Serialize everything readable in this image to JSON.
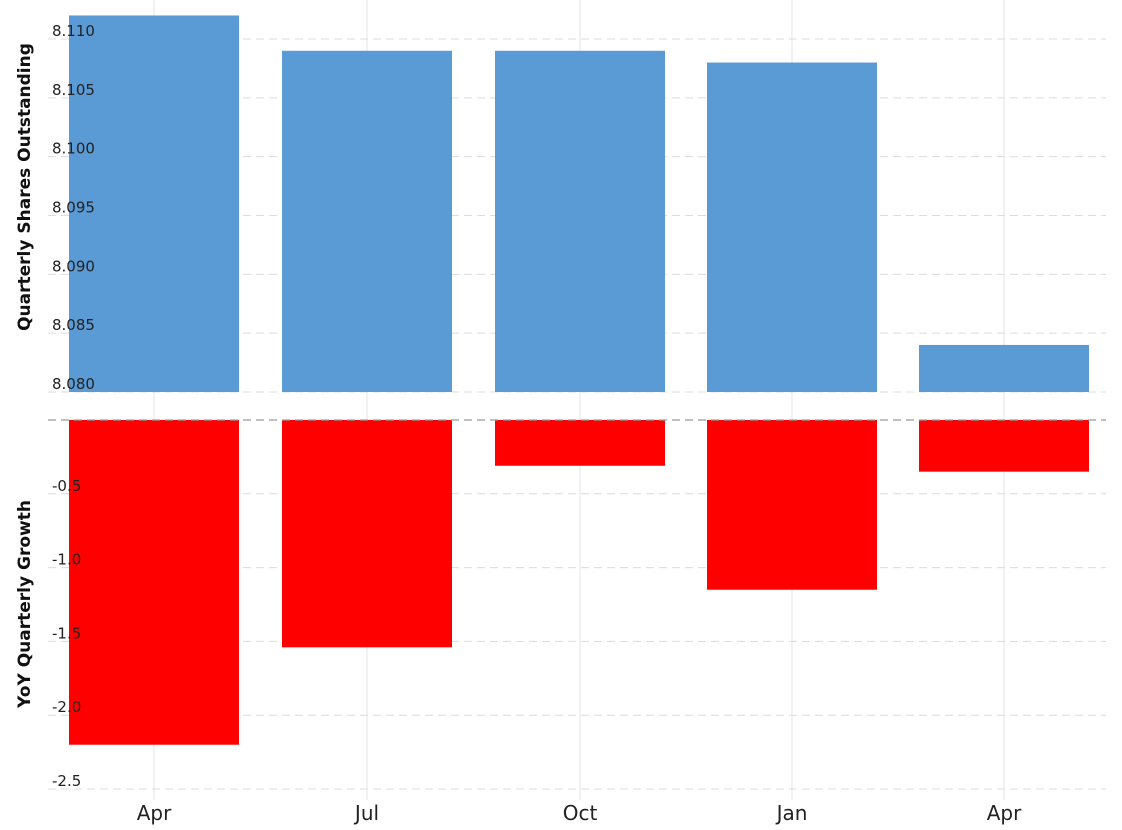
{
  "chart_data": [
    {
      "type": "bar",
      "ylabel": "Quarterly Shares Outstanding",
      "categories": [
        "Apr",
        "Jul",
        "Oct",
        "Jan",
        "Apr"
      ],
      "values": [
        8.112,
        8.109,
        8.109,
        8.108,
        8.084
      ],
      "ylim": [
        8.08,
        8.112
      ],
      "yticks": [
        "8.110",
        "8.105",
        "8.100",
        "8.095",
        "8.090",
        "8.085",
        "8.080"
      ],
      "color": "#5b9bd5",
      "grid": true
    },
    {
      "type": "bar",
      "ylabel": "YoY Quarterly Growth",
      "categories": [
        "Apr",
        "Jul",
        "Oct",
        "Jan",
        "Apr"
      ],
      "values": [
        -2.2,
        -1.54,
        -0.31,
        -1.15,
        -0.35
      ],
      "ylim": [
        -2.5,
        0
      ],
      "yticks": [
        "-0.5",
        "-1.0",
        "-1.5",
        "-2.0",
        "-2.5"
      ],
      "color": "#ff0000",
      "grid": true
    }
  ]
}
